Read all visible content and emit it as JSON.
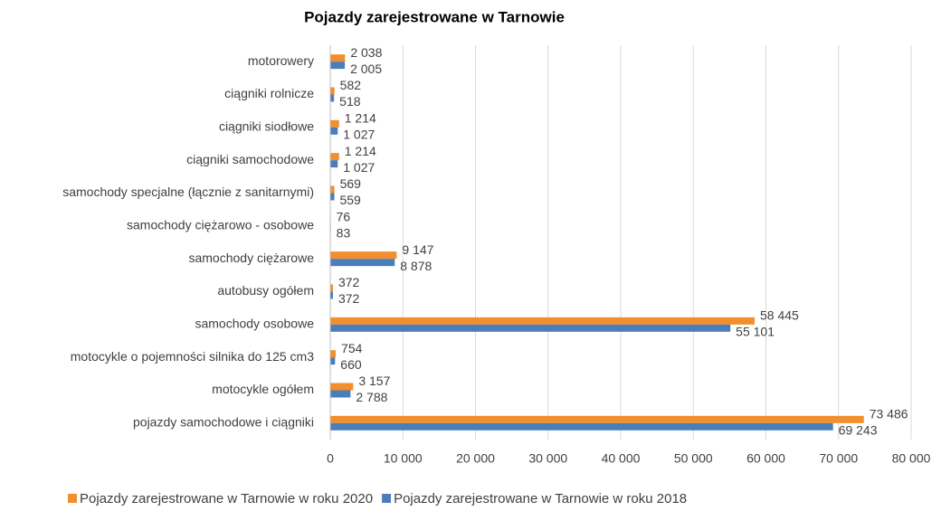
{
  "chart_data": {
    "type": "bar",
    "orientation": "horizontal",
    "title": "Pojazdy zarejestrowane w Tarnowie",
    "categories": [
      "motorowery",
      "ciągniki rolnicze",
      "ciągniki siodłowe",
      "ciągniki samochodowe",
      "samochody specjalne (łącznie z sanitarnymi)",
      "samochody ciężarowo - osobowe",
      "samochody ciężarowe",
      "autobusy ogółem",
      "samochody osobowe",
      "motocykle o pojemności silnika do 125 cm3",
      "motocykle ogółem",
      "pojazdy samochodowe i ciągniki"
    ],
    "series": [
      {
        "name": "Pojazdy zarejestrowane w Tarnowie w roku 2020",
        "color": "#f28e2b",
        "values": [
          2038,
          582,
          1214,
          1214,
          569,
          76,
          9147,
          372,
          58445,
          754,
          3157,
          73486
        ],
        "value_labels": [
          "2 038",
          "582",
          "1 214",
          "1 214",
          "569",
          "76",
          "9 147",
          "372",
          "58 445",
          "754",
          "3 157",
          "73 486"
        ]
      },
      {
        "name": "Pojazdy zarejestrowane w Tarnowie w roku 2018",
        "color": "#4a7ebb",
        "values": [
          2005,
          518,
          1027,
          1027,
          559,
          83,
          8878,
          372,
          55101,
          660,
          2788,
          69243
        ],
        "value_labels": [
          "2 005",
          "518",
          "1 027",
          "1 027",
          "559",
          "83",
          "8 878",
          "372",
          "55 101",
          "660",
          "2 788",
          "69 243"
        ]
      }
    ],
    "xlim": [
      0,
      80000
    ],
    "xticks": [
      0,
      {
        "value": 10000,
        "label": "10 000"
      },
      {
        "value": 20000,
        "label": "20 000"
      },
      {
        "value": 30000,
        "label": "30 000"
      },
      {
        "value": 40000,
        "label": "40 000"
      },
      {
        "value": 50000,
        "label": "50 000"
      },
      {
        "value": 60000,
        "label": "60 000"
      },
      {
        "value": 70000,
        "label": "70 000"
      },
      {
        "value": 80000,
        "label": "80 000"
      }
    ],
    "grid": true,
    "legend": "bottom"
  }
}
